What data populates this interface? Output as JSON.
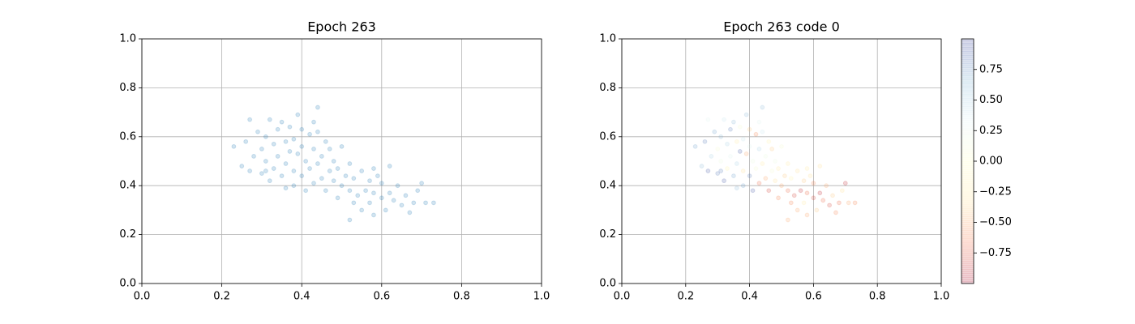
{
  "chart_data": [
    {
      "type": "scatter",
      "title": "Epoch 263",
      "x": [
        0.23,
        0.25,
        0.26,
        0.27,
        0.27,
        0.28,
        0.29,
        0.3,
        0.3,
        0.31,
        0.31,
        0.32,
        0.32,
        0.33,
        0.33,
        0.34,
        0.34,
        0.35,
        0.35,
        0.36,
        0.36,
        0.37,
        0.37,
        0.38,
        0.38,
        0.38,
        0.39,
        0.39,
        0.4,
        0.4,
        0.4,
        0.41,
        0.41,
        0.42,
        0.42,
        0.43,
        0.43,
        0.43,
        0.44,
        0.44,
        0.45,
        0.45,
        0.46,
        0.46,
        0.47,
        0.47,
        0.48,
        0.48,
        0.49,
        0.49,
        0.5,
        0.5,
        0.51,
        0.52,
        0.52,
        0.53,
        0.53,
        0.54,
        0.55,
        0.55,
        0.56,
        0.57,
        0.57,
        0.58,
        0.58,
        0.59,
        0.6,
        0.6,
        0.61,
        0.62,
        0.62,
        0.63,
        0.64,
        0.65,
        0.66,
        0.67,
        0.68,
        0.69,
        0.7,
        0.71,
        0.73,
        0.44,
        0.36,
        0.31,
        0.52,
        0.58
      ],
      "y": [
        0.56,
        0.48,
        0.58,
        0.67,
        0.46,
        0.52,
        0.62,
        0.55,
        0.45,
        0.6,
        0.5,
        0.67,
        0.42,
        0.57,
        0.47,
        0.63,
        0.52,
        0.66,
        0.44,
        0.58,
        0.49,
        0.54,
        0.64,
        0.59,
        0.46,
        0.4,
        0.69,
        0.53,
        0.56,
        0.44,
        0.63,
        0.5,
        0.38,
        0.61,
        0.47,
        0.55,
        0.41,
        0.66,
        0.72,
        0.49,
        0.52,
        0.43,
        0.58,
        0.38,
        0.46,
        0.55,
        0.42,
        0.5,
        0.35,
        0.47,
        0.4,
        0.56,
        0.44,
        0.38,
        0.49,
        0.33,
        0.43,
        0.36,
        0.46,
        0.3,
        0.38,
        0.42,
        0.33,
        0.37,
        0.28,
        0.44,
        0.35,
        0.41,
        0.3,
        0.37,
        0.48,
        0.34,
        0.4,
        0.32,
        0.36,
        0.29,
        0.33,
        0.38,
        0.41,
        0.33,
        0.33,
        0.62,
        0.39,
        0.46,
        0.26,
        0.47
      ],
      "color": "#1f77b4",
      "alpha": 0.2,
      "xlim": [
        0,
        1
      ],
      "ylim": [
        0,
        1
      ],
      "xticks": [
        {
          "value": 0,
          "label": "0.0"
        },
        0.2,
        0.4,
        0.6,
        0.8,
        {
          "value": 1,
          "label": "1.0"
        }
      ],
      "yticks": [
        {
          "value": 0,
          "label": "0.0"
        },
        0.2,
        0.4,
        0.6,
        0.8,
        {
          "value": 1,
          "label": "1.0"
        }
      ],
      "grid": true
    },
    {
      "type": "scatter",
      "title": "Epoch 263 code 0",
      "x": [
        0.23,
        0.25,
        0.26,
        0.27,
        0.27,
        0.28,
        0.29,
        0.3,
        0.3,
        0.31,
        0.31,
        0.32,
        0.32,
        0.33,
        0.33,
        0.34,
        0.34,
        0.35,
        0.35,
        0.36,
        0.36,
        0.37,
        0.37,
        0.38,
        0.38,
        0.38,
        0.39,
        0.39,
        0.4,
        0.4,
        0.4,
        0.41,
        0.41,
        0.42,
        0.42,
        0.43,
        0.43,
        0.43,
        0.44,
        0.44,
        0.45,
        0.45,
        0.46,
        0.46,
        0.47,
        0.47,
        0.48,
        0.48,
        0.49,
        0.49,
        0.5,
        0.5,
        0.51,
        0.52,
        0.52,
        0.53,
        0.53,
        0.54,
        0.55,
        0.55,
        0.56,
        0.57,
        0.57,
        0.58,
        0.58,
        0.59,
        0.6,
        0.6,
        0.61,
        0.62,
        0.62,
        0.63,
        0.64,
        0.65,
        0.66,
        0.67,
        0.68,
        0.69,
        0.7,
        0.71,
        0.73,
        0.44,
        0.36,
        0.31,
        0.52,
        0.58
      ],
      "y": [
        0.56,
        0.48,
        0.58,
        0.67,
        0.46,
        0.52,
        0.62,
        0.55,
        0.45,
        0.6,
        0.5,
        0.67,
        0.42,
        0.57,
        0.47,
        0.63,
        0.52,
        0.66,
        0.44,
        0.58,
        0.49,
        0.54,
        0.64,
        0.59,
        0.46,
        0.4,
        0.69,
        0.53,
        0.56,
        0.44,
        0.63,
        0.5,
        0.38,
        0.61,
        0.47,
        0.55,
        0.41,
        0.66,
        0.72,
        0.49,
        0.52,
        0.43,
        0.58,
        0.38,
        0.46,
        0.55,
        0.42,
        0.5,
        0.35,
        0.47,
        0.4,
        0.56,
        0.44,
        0.38,
        0.49,
        0.33,
        0.43,
        0.36,
        0.46,
        0.3,
        0.38,
        0.42,
        0.33,
        0.37,
        0.28,
        0.44,
        0.35,
        0.41,
        0.3,
        0.37,
        0.48,
        0.34,
        0.4,
        0.32,
        0.36,
        0.29,
        0.33,
        0.38,
        0.41,
        0.33,
        0.33,
        0.62,
        0.39,
        0.46,
        0.26,
        0.47
      ],
      "c": [
        0.7,
        0.6,
        0.8,
        0.3,
        0.9,
        0.5,
        0.7,
        0.1,
        0.8,
        0.6,
        0.2,
        0.4,
        0.9,
        0.5,
        -0.1,
        0.8,
        0.3,
        0.6,
        0.7,
        -0.2,
        0.5,
        0.9,
        0.1,
        0.4,
        -0.3,
        0.7,
        0.6,
        -0.5,
        0.3,
        0.8,
        -0.4,
        0.2,
        0.9,
        -0.6,
        0.1,
        0.5,
        -0.7,
        0.3,
        0.6,
        -0.2,
        0.2,
        -0.5,
        -0.1,
        -0.8,
        0.1,
        -0.4,
        -0.3,
        0.2,
        -0.6,
        -0.2,
        -0.5,
        0.1,
        -0.4,
        -0.7,
        -0.2,
        -0.6,
        -0.1,
        -0.8,
        -0.3,
        -0.5,
        -0.9,
        -0.4,
        -0.2,
        -0.7,
        -0.5,
        -0.3,
        -0.8,
        -0.6,
        -0.4,
        -0.9,
        -0.3,
        -0.7,
        -0.5,
        -0.8,
        -0.4,
        -0.6,
        -0.7,
        -0.3,
        -0.9,
        -0.5,
        -0.6,
        0.4,
        0.6,
        0.8,
        -0.5,
        -0.2
      ],
      "colormap": [
        "#a50026",
        "#f46d43",
        "#fee090",
        "#ffffbf",
        "#e0f3f8",
        "#74add1",
        "#313695"
      ],
      "alpha": 0.2,
      "clim": [
        -1,
        1
      ],
      "cticks": [
        {
          "value": -0.75,
          "label": "−0.75"
        },
        {
          "value": -0.5,
          "label": "−0.50"
        },
        {
          "value": -0.25,
          "label": "−0.25"
        },
        {
          "value": 0,
          "label": "0.00"
        },
        0.25,
        {
          "value": 0.5,
          "label": "0.50"
        },
        0.75
      ],
      "xlim": [
        0,
        1
      ],
      "ylim": [
        0,
        1
      ],
      "xticks": [
        {
          "value": 0,
          "label": "0.0"
        },
        0.2,
        0.4,
        0.6,
        0.8,
        {
          "value": 1,
          "label": "1.0"
        }
      ],
      "yticks": [
        {
          "value": 0,
          "label": "0.0"
        },
        0.2,
        0.4,
        0.6,
        0.8,
        {
          "value": 1,
          "label": "1.0"
        }
      ],
      "grid": true
    }
  ]
}
